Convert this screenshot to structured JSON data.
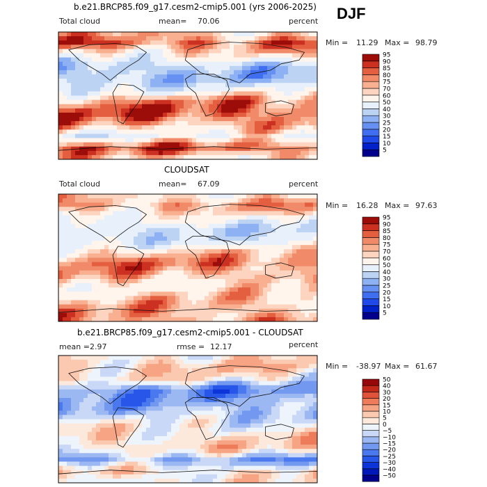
{
  "season": "DJF",
  "chart_data": [
    {
      "type": "heatmap",
      "title": "b.e21.BRCP85.f09_g17.cesm2-cmip5.001 (yrs 2006-2025)",
      "left_label": "Total cloud",
      "mean_label": "mean=",
      "mean_value": "70.06",
      "units": "percent",
      "min_label": "Min =",
      "min_value": "11.29",
      "max_label": "Max =",
      "max_value": "98.79",
      "levels": [
        "5",
        "10",
        "15",
        "20",
        "25",
        "30",
        "40",
        "50",
        "60",
        "70",
        "75",
        "80",
        "85",
        "90",
        "95"
      ],
      "colors": [
        "#00008c",
        "#0022c8",
        "#1f49e8",
        "#3f6ff0",
        "#6691f2",
        "#8eb1f3",
        "#bcd3f4",
        "#e8f0fb",
        "#fff5ec",
        "#fcd4c0",
        "#f8b090",
        "#f08a68",
        "#e45e40",
        "#cc3020",
        "#9c0c08"
      ],
      "bands": [
        72,
        88,
        66,
        42,
        40,
        58,
        82,
        90,
        80,
        58,
        88,
        70
      ],
      "amplitude": 14
    },
    {
      "type": "heatmap",
      "title": "CLOUDSAT",
      "left_label": "Total cloud",
      "mean_label": "mean=",
      "mean_value": "67.09",
      "units": "percent",
      "min_label": "Min =",
      "min_value": "16.28",
      "max_label": "Max =",
      "max_value": "97.63",
      "levels": [
        "5",
        "10",
        "15",
        "20",
        "25",
        "30",
        "40",
        "50",
        "60",
        "70",
        "75",
        "80",
        "85",
        "90",
        "95"
      ],
      "colors": [
        "#00008c",
        "#0022c8",
        "#1f49e8",
        "#3f6ff0",
        "#6691f2",
        "#8eb1f3",
        "#bcd3f4",
        "#e8f0fb",
        "#fff5ec",
        "#fcd4c0",
        "#f8b090",
        "#f08a68",
        "#e45e40",
        "#cc3020",
        "#9c0c08"
      ],
      "bands": [
        70,
        80,
        62,
        48,
        52,
        72,
        84,
        78,
        68,
        74,
        78,
        80
      ],
      "amplitude": 12
    },
    {
      "type": "heatmap",
      "title": "b.e21.BRCP85.f09_g17.cesm2-cmip5.001 - CLOUDSAT",
      "left_label": "mean =",
      "mean_label": "",
      "mean_value": "2.97",
      "rmse_label": "rmse =",
      "rmse_value": "12.17",
      "units": "percent",
      "min_label": "Min =",
      "min_value": "-38.97",
      "max_label": "Max =",
      "max_value": "61.67",
      "levels": [
        "−50",
        "−40",
        "−30",
        "−25",
        "−20",
        "−15",
        "−10",
        "−5",
        "0",
        "5",
        "10",
        "15",
        "20",
        "30",
        "40",
        "50"
      ],
      "colors": [
        "#00008c",
        "#0018b8",
        "#0c34d8",
        "#2856e8",
        "#4a78ee",
        "#7298f0",
        "#9cb8f2",
        "#c8d8f6",
        "#eef4fc",
        "#fde8dc",
        "#fbc8b0",
        "#f6a484",
        "#ee7c5a",
        "#e0523a",
        "#c42818",
        "#96080a"
      ],
      "bands": [
        8,
        12,
        6,
        -14,
        -10,
        -6,
        4,
        10,
        10,
        -10,
        10,
        6
      ],
      "amplitude": 10
    }
  ]
}
